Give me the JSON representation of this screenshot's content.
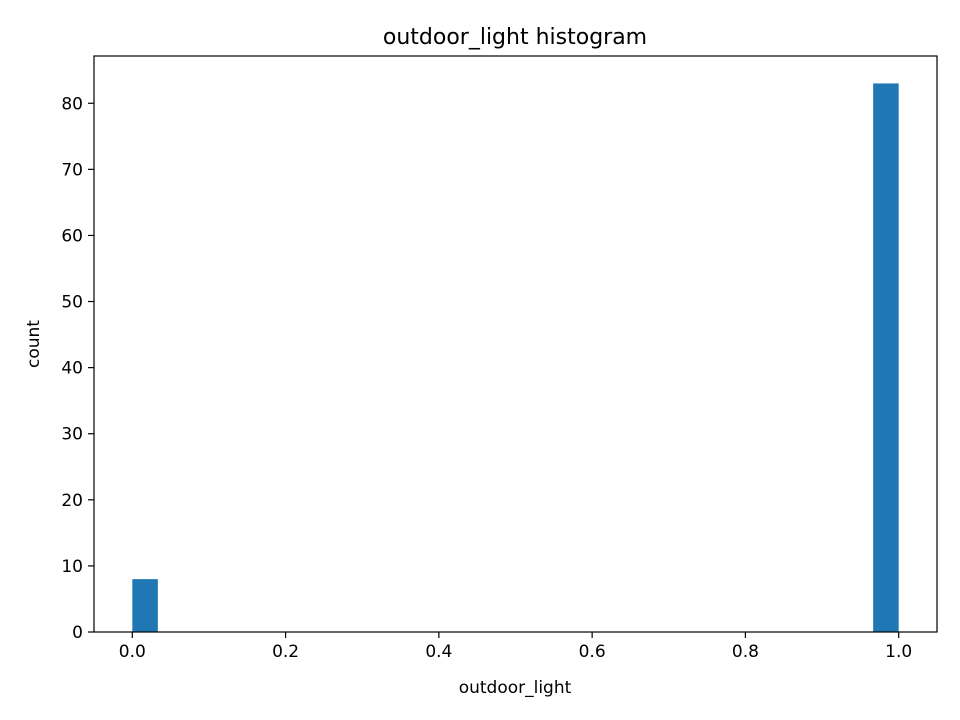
{
  "chart_data": {
    "type": "bar",
    "title": "outdoor_light histogram",
    "xlabel": "outdoor_light",
    "ylabel": "count",
    "xlim": [
      -0.05,
      1.05
    ],
    "ylim": [
      0,
      87.15
    ],
    "xticks": [
      0.0,
      0.2,
      0.4,
      0.6,
      0.8,
      1.0
    ],
    "xtick_labels": [
      "0.0",
      "0.2",
      "0.4",
      "0.6",
      "0.8",
      "1.0"
    ],
    "yticks": [
      0,
      10,
      20,
      30,
      40,
      50,
      60,
      70,
      80
    ],
    "ytick_labels": [
      "0",
      "10",
      "20",
      "30",
      "40",
      "50",
      "60",
      "70",
      "80"
    ],
    "grid": false,
    "bins": [
      {
        "x0": 0.0,
        "x1": 0.0333,
        "count": 8
      },
      {
        "x0": 0.9667,
        "x1": 1.0,
        "count": 83
      }
    ],
    "colors": {
      "bar": "#1f77b4"
    }
  }
}
